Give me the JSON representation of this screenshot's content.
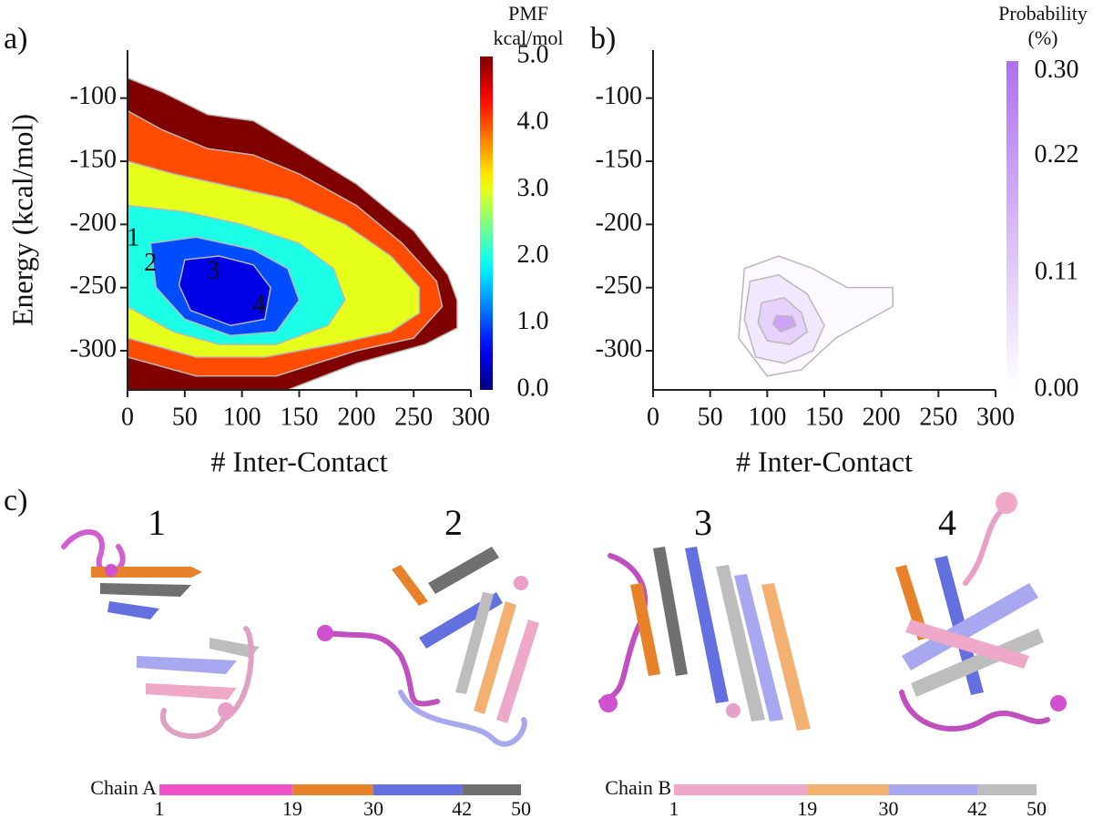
{
  "chart_data": [
    {
      "type": "contour",
      "panel_label": "a)",
      "xlabel": "# Inter-Contact",
      "ylabel": "Energy (kcal/mol)",
      "xlim": [
        0,
        300
      ],
      "xticks": [
        0,
        50,
        100,
        150,
        200,
        250,
        300
      ],
      "ylim": [
        -331,
        -62
      ],
      "yticks": [
        -100,
        -150,
        -200,
        -250,
        -300
      ],
      "colormap": "jet",
      "colorbar_title": [
        "PMF",
        "kcal/mol"
      ],
      "clim": [
        0,
        5
      ],
      "cticks": [
        {
          "value": 0,
          "label": "0.0"
        },
        {
          "value": 1,
          "label": "1.0"
        },
        {
          "value": 2,
          "label": "2.0"
        },
        {
          "value": 3,
          "label": "3.0"
        },
        {
          "value": 4,
          "label": "4.0"
        },
        {
          "value": 5,
          "label": "5.0"
        }
      ],
      "contours": [
        {
          "level": 5,
          "x": [
            0,
            30,
            70,
            110,
            150,
            200,
            250,
            280,
            288,
            288,
            260,
            200,
            140,
            0
          ],
          "y": [
            -84,
            -95,
            -113,
            -118,
            -140,
            -168,
            -205,
            -240,
            -260,
            -282,
            -295,
            -310,
            -331,
            -331
          ]
        },
        {
          "level": 4,
          "x": [
            0,
            30,
            70,
            110,
            150,
            200,
            240,
            270,
            275,
            250,
            200,
            130,
            60,
            0
          ],
          "y": [
            -110,
            -125,
            -140,
            -145,
            -160,
            -185,
            -215,
            -245,
            -265,
            -290,
            -300,
            -320,
            -320,
            -305
          ]
        },
        {
          "level": 3,
          "x": [
            0,
            40,
            90,
            140,
            190,
            230,
            255,
            255,
            230,
            180,
            120,
            60,
            0
          ],
          "y": [
            -150,
            -160,
            -170,
            -180,
            -200,
            -225,
            -250,
            -270,
            -285,
            -295,
            -305,
            -305,
            -290
          ]
        },
        {
          "level": 2,
          "x": [
            0,
            50,
            100,
            150,
            180,
            190,
            175,
            130,
            80,
            40,
            0
          ],
          "y": [
            -185,
            -190,
            -200,
            -215,
            -235,
            -260,
            -280,
            -295,
            -295,
            -285,
            -265
          ]
        },
        {
          "level": 1,
          "x": [
            20,
            60,
            110,
            140,
            150,
            130,
            90,
            50,
            25
          ],
          "y": [
            -215,
            -210,
            -220,
            -235,
            -260,
            -285,
            -288,
            -275,
            -250
          ]
        },
        {
          "level": 0.5,
          "x": [
            50,
            80,
            110,
            125,
            120,
            90,
            55,
            45
          ],
          "y": [
            -228,
            -225,
            -232,
            -250,
            -275,
            -280,
            -268,
            -248
          ]
        }
      ],
      "annotations": [
        {
          "text": "1",
          "x": 5,
          "y": -212
        },
        {
          "text": "2",
          "x": 20,
          "y": -232
        },
        {
          "text": "3",
          "x": 75,
          "y": -238
        },
        {
          "text": "4",
          "x": 115,
          "y": -265
        }
      ]
    },
    {
      "type": "contour",
      "panel_label": "b)",
      "xlabel": "# Inter-Contact",
      "xlim": [
        0,
        300
      ],
      "xticks": [
        0,
        50,
        100,
        150,
        200,
        250,
        300
      ],
      "ylim": [
        -331,
        -62
      ],
      "yticks": [
        -100,
        -150,
        -200,
        -250,
        -300
      ],
      "colormap": "white-to-color",
      "color": "#b070f0",
      "colorbar_title": [
        "Probability",
        "(%)"
      ],
      "clim": [
        0,
        0.31
      ],
      "cticks": [
        {
          "value": 0,
          "label": "0.00"
        },
        {
          "value": 0.11,
          "label": "0.11"
        },
        {
          "value": 0.22,
          "label": "0.22"
        },
        {
          "value": 0.3,
          "label": "0.30"
        }
      ],
      "contours": [
        {
          "level": 0.01,
          "x": [
            80,
            110,
            140,
            170,
            210,
            210,
            160,
            130,
            100,
            75
          ],
          "y": [
            -235,
            -225,
            -235,
            -250,
            -250,
            -265,
            -290,
            -315,
            -320,
            -290
          ]
        },
        {
          "level": 0.05,
          "x": [
            85,
            110,
            135,
            150,
            140,
            115,
            90,
            80
          ],
          "y": [
            -245,
            -240,
            -255,
            -280,
            -300,
            -310,
            -305,
            -275
          ]
        },
        {
          "level": 0.1,
          "x": [
            95,
            115,
            130,
            135,
            120,
            100,
            92
          ],
          "y": [
            -262,
            -258,
            -270,
            -285,
            -295,
            -292,
            -278
          ]
        },
        {
          "level": 0.2,
          "x": [
            108,
            122,
            125,
            112,
            105
          ],
          "y": [
            -272,
            -273,
            -280,
            -285,
            -279
          ]
        }
      ]
    }
  ],
  "structures": {
    "panel_label": "c)",
    "labels": [
      "1",
      "2",
      "3",
      "4"
    ],
    "chains": [
      {
        "name": "Chain A",
        "ticks": [
          1,
          19,
          30,
          42,
          50
        ],
        "colors": [
          "#f050c8",
          "#e8822a",
          "#6470e0",
          "#707070"
        ]
      },
      {
        "name": "Chain B",
        "ticks": [
          1,
          19,
          30,
          42,
          50
        ],
        "colors": [
          "#f0a8c8",
          "#f4b070",
          "#a8a8f0",
          "#bdbdbd"
        ]
      }
    ]
  }
}
